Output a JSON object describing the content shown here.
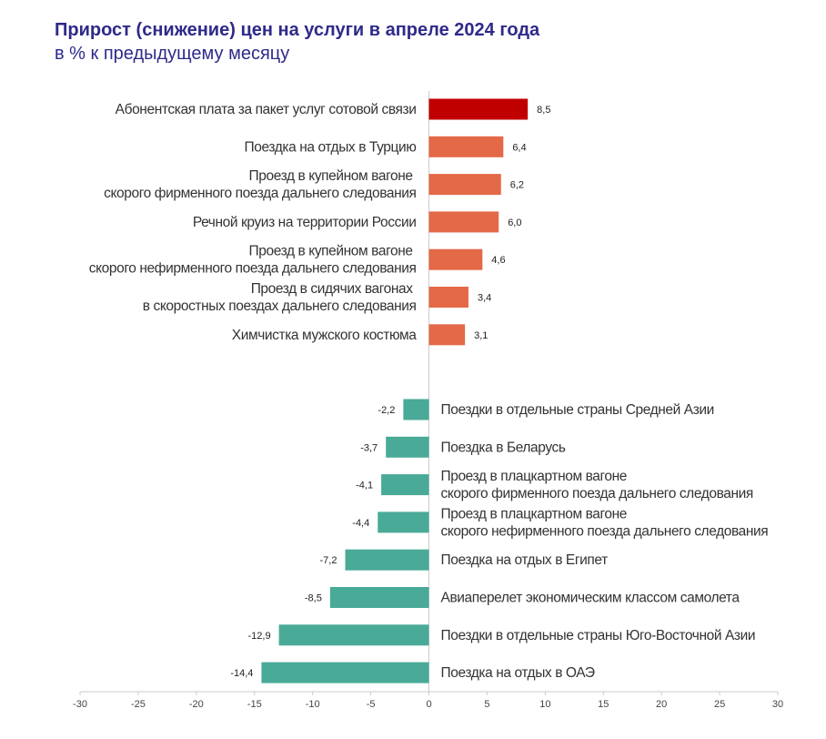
{
  "header": {
    "title": "Прирост (снижение) цен на услуги в апреле 2024 года",
    "subtitle": "в % к предыдущему месяцу"
  },
  "colors": {
    "top_increase": "#c00000",
    "increase": "#e36947",
    "decrease": "#4aaa98",
    "axis": "#cccccc",
    "title": "#2e2a8a"
  },
  "chart_data": {
    "type": "bar",
    "orientation": "horizontal",
    "title": "Прирост (снижение) цен на услуги в апреле 2024 года",
    "subtitle": "в % к предыдущему месяцу",
    "xlim": [
      -30,
      30
    ],
    "xticks": [
      "-30",
      "-25",
      "-20",
      "-15",
      "-10",
      "-5",
      "0",
      "5",
      "10",
      "15",
      "20",
      "25",
      "30"
    ],
    "groups": [
      {
        "name": "increase",
        "items": [
          {
            "label": [
              "Абонентская плата за пакет услуг  сотовой связи"
            ],
            "value": 8.5,
            "value_label": "8,5",
            "highlight": true
          },
          {
            "label": [
              "Поездка на отдых в  Турцию"
            ],
            "value": 6.4,
            "value_label": "6,4"
          },
          {
            "label": [
              "Проезд в купейном вагоне ",
              "скорого фирменного поезда дальнего следования"
            ],
            "value": 6.2,
            "value_label": "6,2"
          },
          {
            "label": [
              "Речной круиз на территории России"
            ],
            "value": 6.0,
            "value_label": "6,0"
          },
          {
            "label": [
              "Проезд в купейном вагоне ",
              "скорого нефирменного поезда дальнего следования"
            ],
            "value": 4.6,
            "value_label": "4,6"
          },
          {
            "label": [
              "Проезд в сидячих вагонах ",
              "в скоростных поездах дальнего следования"
            ],
            "value": 3.4,
            "value_label": "3,4"
          },
          {
            "label": [
              "Химчистка мужского костюма"
            ],
            "value": 3.1,
            "value_label": "3,1"
          }
        ]
      },
      {
        "name": "decrease",
        "items": [
          {
            "label": [
              "Поездки в отдельные страны Средней Азии"
            ],
            "value": -2.2,
            "value_label": "-2,2"
          },
          {
            "label": [
              "Поездка в Беларусь"
            ],
            "value": -3.7,
            "value_label": "-3,7"
          },
          {
            "label": [
              "Проезд в плацкартном вагоне",
              "скорого фирменного поезда дальнего следования"
            ],
            "value": -4.1,
            "value_label": "-4,1"
          },
          {
            "label": [
              "Проезд в плацкартном вагоне",
              "скорого нефирменного поезда дальнего следования"
            ],
            "value": -4.4,
            "value_label": "-4,4"
          },
          {
            "label": [
              "Поездка на отдых в Египет"
            ],
            "value": -7.2,
            "value_label": "-7,2"
          },
          {
            "label": [
              "Авиаперелет экономическим классом самолета"
            ],
            "value": -8.5,
            "value_label": "-8,5"
          },
          {
            "label": [
              "Поездки в отдельные страны Юго-Восточной Азии"
            ],
            "value": -12.9,
            "value_label": "-12,9"
          },
          {
            "label": [
              "Поездка на отдых в ОАЭ"
            ],
            "value": -14.4,
            "value_label": "-14,4"
          }
        ]
      }
    ]
  }
}
